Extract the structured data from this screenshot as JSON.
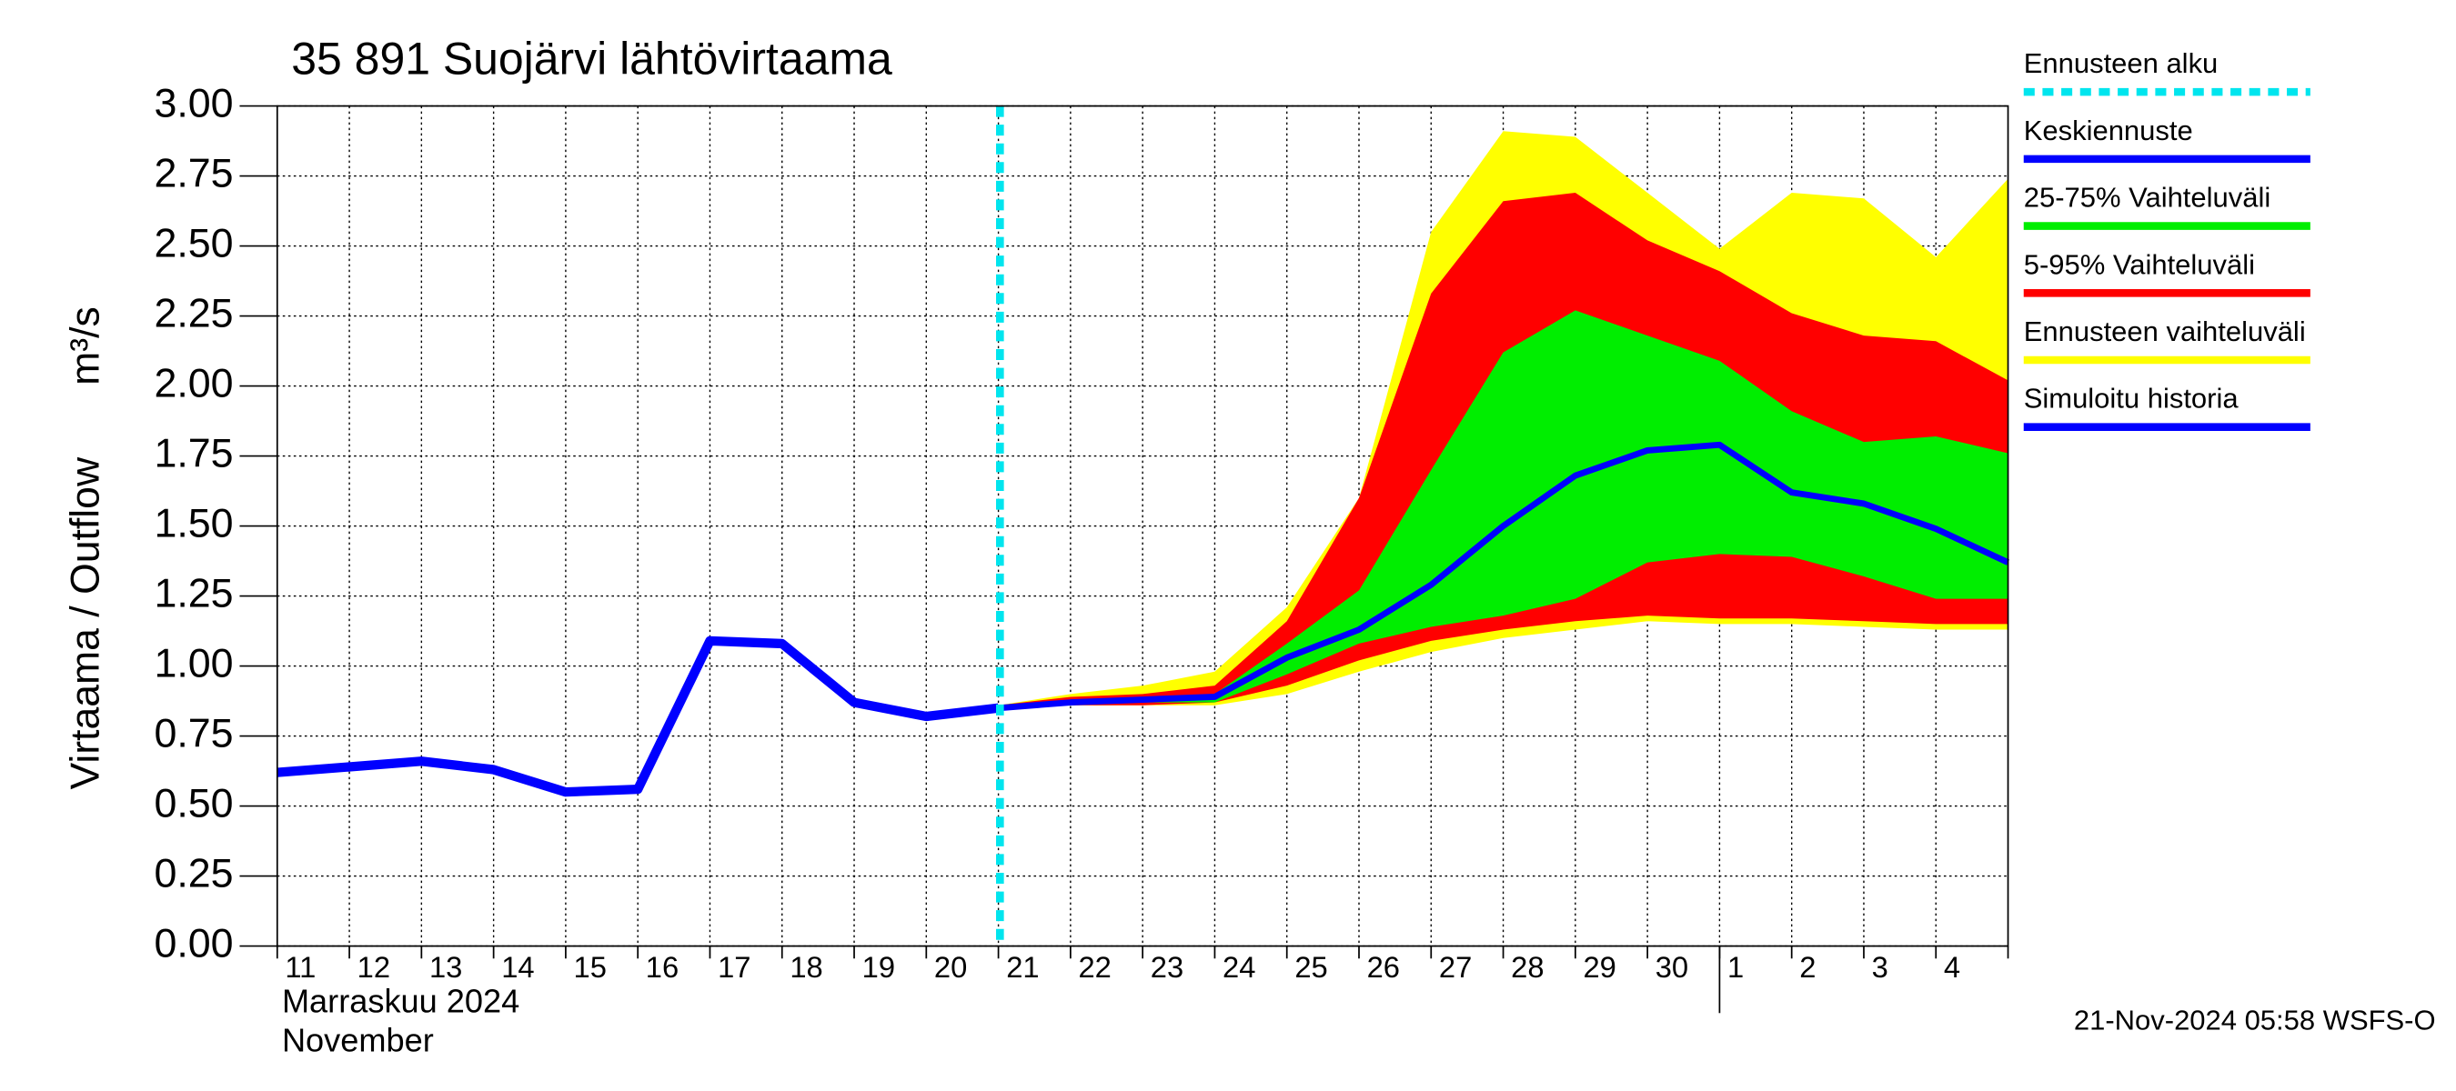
{
  "chart_data": {
    "type": "line",
    "title": "35 891 Suojärvi lähtövirtaama",
    "y_label": "Virtaama / Outflow",
    "y_unit": "m³/s",
    "x_label_fi": "Marraskuu 2024",
    "x_label_en": "November",
    "footer": "21-Nov-2024 05:58 WSFS-O",
    "categories": [
      "11",
      "12",
      "13",
      "14",
      "15",
      "16",
      "17",
      "18",
      "19",
      "20",
      "21",
      "22",
      "23",
      "24",
      "25",
      "26",
      "27",
      "28",
      "29",
      "30",
      "1",
      "2",
      "3",
      "4",
      null
    ],
    "month_start": "1",
    "forecast_start": "21",
    "forecast_start_name": "Ennusteen alku",
    "forecast_start_color": "#00e5ee",
    "ylim": [
      0,
      3
    ],
    "yticks": [
      {
        "value": 0,
        "label": "0.00"
      },
      {
        "value": 0.25,
        "label": "0.25"
      },
      {
        "value": 0.5,
        "label": "0.50"
      },
      {
        "value": 0.75,
        "label": "0.75"
      },
      {
        "value": 1,
        "label": "1.00"
      },
      {
        "value": 1.25,
        "label": "1.25"
      },
      {
        "value": 1.5,
        "label": "1.50"
      },
      {
        "value": 1.75,
        "label": "1.75"
      },
      {
        "value": 2,
        "label": "2.00"
      },
      {
        "value": 2.25,
        "label": "2.25"
      },
      {
        "value": 2.5,
        "label": "2.50"
      },
      {
        "value": 2.75,
        "label": "2.75"
      },
      {
        "value": 3,
        "label": "3.00"
      }
    ],
    "grid": true,
    "series": [
      {
        "name": "Keskiennuste",
        "color": "#0000ff",
        "values": [
          null,
          null,
          null,
          null,
          null,
          null,
          null,
          null,
          null,
          null,
          0.85,
          0.87,
          0.88,
          0.89,
          1.03,
          1.13,
          1.29,
          1.5,
          1.68,
          1.77,
          1.79,
          1.62,
          1.58,
          1.49,
          1.37
        ]
      },
      {
        "name": "Simuloitu historia",
        "color": "#0000ff",
        "values": [
          0.62,
          0.64,
          0.66,
          0.63,
          0.55,
          0.56,
          1.09,
          1.08,
          0.87,
          0.82,
          0.85,
          null,
          null,
          null,
          null,
          null,
          null,
          null,
          null,
          null,
          null,
          null,
          null,
          null,
          null
        ]
      }
    ],
    "bands": [
      {
        "name": "25-75% Vaihteluväli",
        "color": "#00ee00",
        "lower": [
          null,
          null,
          null,
          null,
          null,
          null,
          null,
          null,
          null,
          null,
          0.85,
          0.86,
          0.87,
          0.87,
          0.97,
          1.08,
          1.14,
          1.18,
          1.24,
          1.37,
          1.4,
          1.39,
          1.32,
          1.24,
          1.24
        ],
        "upper": [
          null,
          null,
          null,
          null,
          null,
          null,
          null,
          null,
          null,
          null,
          0.86,
          0.88,
          0.89,
          0.9,
          1.08,
          1.27,
          1.7,
          2.12,
          2.27,
          2.18,
          2.09,
          1.91,
          1.8,
          1.82,
          1.76
        ]
      },
      {
        "name": "5-95% Vaihteluväli",
        "color": "#ff0000",
        "lower": [
          null,
          null,
          null,
          null,
          null,
          null,
          null,
          null,
          null,
          null,
          0.85,
          0.86,
          0.86,
          0.87,
          0.93,
          1.02,
          1.09,
          1.13,
          1.16,
          1.18,
          1.17,
          1.17,
          1.16,
          1.15,
          1.15
        ],
        "upper": [
          null,
          null,
          null,
          null,
          null,
          null,
          null,
          null,
          null,
          null,
          0.86,
          0.89,
          0.9,
          0.93,
          1.16,
          1.6,
          2.33,
          2.66,
          2.69,
          2.52,
          2.41,
          2.26,
          2.18,
          2.16,
          2.02
        ]
      },
      {
        "name": "Ennusteen vaihteluväli",
        "color": "#ffff00",
        "lower": [
          null,
          null,
          null,
          null,
          null,
          null,
          null,
          null,
          null,
          null,
          0.85,
          0.86,
          0.86,
          0.86,
          0.9,
          0.98,
          1.05,
          1.1,
          1.13,
          1.16,
          1.15,
          1.15,
          1.14,
          1.13,
          1.13
        ],
        "upper": [
          null,
          null,
          null,
          null,
          null,
          null,
          null,
          null,
          null,
          null,
          0.86,
          0.9,
          0.93,
          0.98,
          1.21,
          1.6,
          2.55,
          2.91,
          2.89,
          2.69,
          2.49,
          2.69,
          2.67,
          2.46,
          2.74
        ]
      }
    ]
  }
}
